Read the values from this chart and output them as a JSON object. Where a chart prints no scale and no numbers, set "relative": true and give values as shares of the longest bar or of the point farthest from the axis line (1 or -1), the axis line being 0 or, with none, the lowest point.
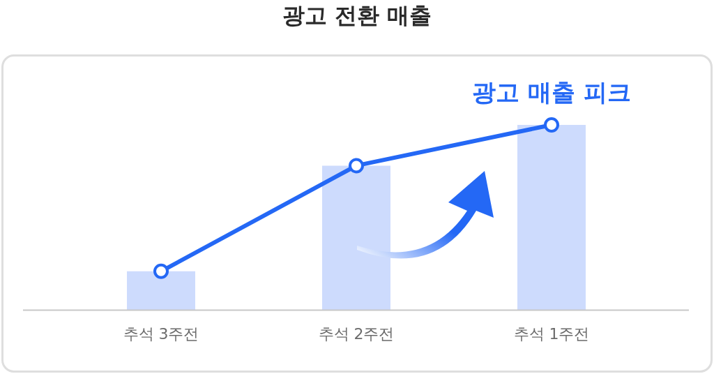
{
  "chart_data": {
    "type": "bar",
    "title": "광고 전환 매출",
    "relative": true,
    "categories": [
      "추석 3주전",
      "추석 2주전",
      "추석 1주전"
    ],
    "series": [
      {
        "color": "#cddbfd",
        "values": [
          0.21,
          0.78,
          1
        ]
      },
      {
        "type": "line",
        "color": "#2468f5",
        "values": [
          0.21,
          0.78,
          1
        ]
      }
    ],
    "marker": "circle",
    "grid": false,
    "legend": false,
    "annotations": [
      {
        "text": "광고 매출 피크",
        "x": "추석 1주전",
        "y": 1
      }
    ]
  }
}
